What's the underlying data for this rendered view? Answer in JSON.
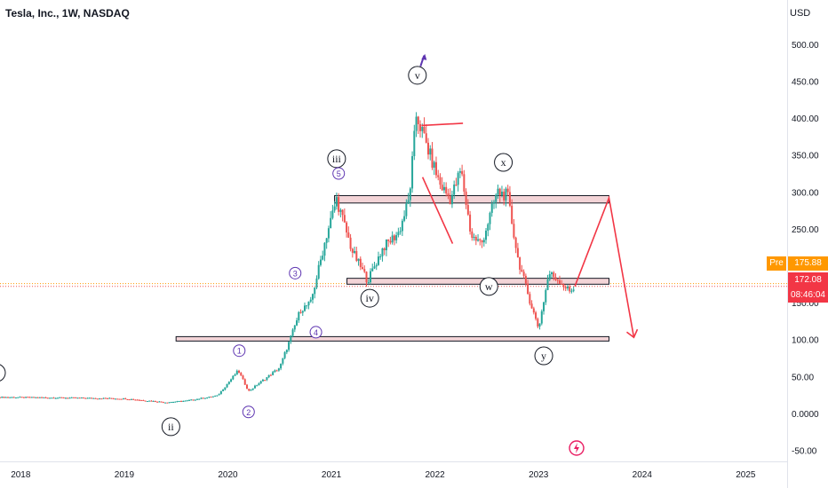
{
  "header": {
    "title": "Tesla, Inc., 1W, NASDAQ",
    "currency": "USD"
  },
  "labels": {
    "pre_tag": "Pre",
    "pre_price": "175.88",
    "last_price": "172.08",
    "countdown": "08:46:04"
  },
  "colors": {
    "up": "#26a69a",
    "down": "#ef5350",
    "drawing": "#f23645",
    "wave_minor": "#5e35b1",
    "zone_fill": "#f3d4d7",
    "pre": "#ff9800"
  },
  "chart_data": {
    "type": "candlestick",
    "title": "Tesla, Inc., 1W, NASDAQ",
    "ylabel": "USD",
    "ylim": [
      -65,
      560
    ],
    "xlim": [
      2017.8,
      2025.4
    ],
    "y_ticks": [
      "500.00",
      "450.00",
      "400.00",
      "350.00",
      "300.00",
      "250.00",
      "200.00",
      "150.00",
      "100.00",
      "50.00",
      "0.0000",
      "-50.00"
    ],
    "y_tick_values": [
      500,
      450,
      400,
      350,
      300,
      250,
      200,
      150,
      100,
      50,
      0,
      -50
    ],
    "x_ticks": [
      "2018",
      "2019",
      "2020",
      "2021",
      "2022",
      "2023",
      "2024",
      "2025"
    ],
    "x_tick_values": [
      2018,
      2019,
      2020,
      2021,
      2022,
      2023,
      2024,
      2025
    ],
    "price_path": [
      [
        2017.8,
        22
      ],
      [
        2018.5,
        21
      ],
      [
        2019.0,
        20
      ],
      [
        2019.4,
        15
      ],
      [
        2019.6,
        17
      ],
      [
        2019.9,
        24
      ],
      [
        2020.1,
        58
      ],
      [
        2020.2,
        30
      ],
      [
        2020.5,
        62
      ],
      [
        2020.6,
        100
      ],
      [
        2020.7,
        140
      ],
      [
        2020.8,
        150
      ],
      [
        2020.95,
        240
      ],
      [
        2021.05,
        290
      ],
      [
        2021.2,
        220
      ],
      [
        2021.35,
        180
      ],
      [
        2021.5,
        225
      ],
      [
        2021.65,
        245
      ],
      [
        2021.75,
        290
      ],
      [
        2021.82,
        405
      ],
      [
        2021.95,
        350
      ],
      [
        2022.05,
        310
      ],
      [
        2022.15,
        290
      ],
      [
        2022.25,
        330
      ],
      [
        2022.35,
        240
      ],
      [
        2022.45,
        230
      ],
      [
        2022.6,
        300
      ],
      [
        2022.7,
        295
      ],
      [
        2022.8,
        210
      ],
      [
        2022.9,
        160
      ],
      [
        2023.0,
        115
      ],
      [
        2023.1,
        190
      ],
      [
        2023.2,
        180
      ],
      [
        2023.3,
        165
      ],
      [
        2023.35,
        172
      ]
    ],
    "horizontal_zones": [
      {
        "y_low": 285,
        "y_high": 295,
        "x_start": 2021.03,
        "x_end": 2023.68
      },
      {
        "y_low": 175,
        "y_high": 183,
        "x_start": 2021.15,
        "x_end": 2023.68
      },
      {
        "y_low": 98,
        "y_high": 104,
        "x_start": 2019.5,
        "x_end": 2023.68
      }
    ],
    "projection_path": [
      [
        2023.35,
        172
      ],
      [
        2023.68,
        292
      ],
      [
        2023.92,
        103
      ]
    ],
    "wave_labels": [
      {
        "text": "ii",
        "x": 2019.45,
        "y": -18,
        "style": "major"
      },
      {
        "text": "iii",
        "x": 2021.05,
        "y": 345,
        "style": "major"
      },
      {
        "text": "iv",
        "x": 2021.37,
        "y": 156,
        "style": "major"
      },
      {
        "text": "v",
        "x": 2021.83,
        "y": 458,
        "style": "major"
      },
      {
        "text": "w",
        "x": 2022.52,
        "y": 172,
        "style": "major"
      },
      {
        "text": "x",
        "x": 2022.66,
        "y": 340,
        "style": "major"
      },
      {
        "text": "y",
        "x": 2023.05,
        "y": 78,
        "style": "major"
      },
      {
        "text": "1",
        "x": 2020.11,
        "y": 85,
        "style": "minor"
      },
      {
        "text": "2",
        "x": 2020.2,
        "y": 2,
        "style": "minor"
      },
      {
        "text": "3",
        "x": 2020.65,
        "y": 190,
        "style": "minor"
      },
      {
        "text": "4",
        "x": 2020.85,
        "y": 110,
        "style": "minor"
      },
      {
        "text": "5",
        "x": 2021.07,
        "y": 325,
        "style": "minor"
      }
    ],
    "current_price": 172.08,
    "pre_price": 175.88
  }
}
